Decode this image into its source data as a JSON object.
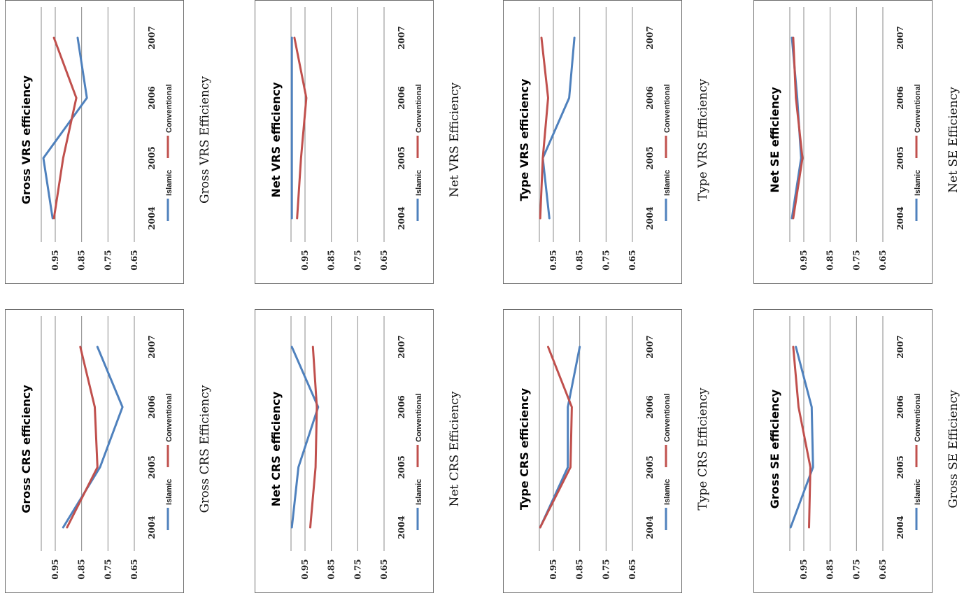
{
  "legend": [
    "Islamic",
    "Conventional"
  ],
  "colors": {
    "Islamic": "#4f81bd",
    "Conventional": "#c0504d"
  },
  "chart_data": [
    {
      "type": "line",
      "title": "Gross VRS efficiency",
      "caption": "Gross VRS Efficiency",
      "categories": [
        "2004",
        "2005",
        "2006",
        "2007"
      ],
      "yticks": [
        "0.95",
        "0.85",
        "0.75",
        "0.65"
      ],
      "ylim": [
        0.65,
        1.0
      ],
      "series": [
        {
          "name": "Islamic",
          "values": [
            0.96,
            0.995,
            0.83,
            0.865
          ]
        },
        {
          "name": "Conventional",
          "values": [
            0.955,
            0.92,
            0.87,
            0.955
          ]
        }
      ]
    },
    {
      "type": "line",
      "title": "Gross CRS efficiency",
      "caption": "Gross CRS Efficiency",
      "categories": [
        "2004",
        "2005",
        "2006",
        "2007"
      ],
      "yticks": [
        "0.95",
        "0.85",
        "0.75",
        "0.65"
      ],
      "ylim": [
        0.65,
        1.0
      ],
      "series": [
        {
          "name": "Islamic",
          "values": [
            0.92,
            0.78,
            0.695,
            0.79
          ]
        },
        {
          "name": "Conventional",
          "values": [
            0.905,
            0.79,
            0.8,
            0.855
          ]
        }
      ]
    },
    {
      "type": "line",
      "title": "Net VRS efficiency",
      "caption": "Net VRS Efficiency",
      "categories": [
        "2004",
        "2005",
        "2006",
        "2007"
      ],
      "yticks": [
        "0.95",
        "0.85",
        "0.75",
        "0.65"
      ],
      "ylim": [
        0.65,
        1.0
      ],
      "series": [
        {
          "name": "Islamic",
          "values": [
            1.0,
            1.0,
            1.0,
            1.0
          ]
        },
        {
          "name": "Conventional",
          "values": [
            0.98,
            0.965,
            0.945,
            0.99
          ]
        }
      ]
    },
    {
      "type": "line",
      "title": "Net CRS efficiency",
      "caption": "Net CRS Efficiency",
      "categories": [
        "2004",
        "2005",
        "2006",
        "2007"
      ],
      "yticks": [
        "0.95",
        "0.85",
        "0.75",
        "0.65"
      ],
      "ylim": [
        0.65,
        1.0
      ],
      "series": [
        {
          "name": "Islamic",
          "values": [
            1.0,
            0.975,
            0.9,
            1.0
          ]
        },
        {
          "name": "Conventional",
          "values": [
            0.93,
            0.91,
            0.905,
            0.92
          ]
        }
      ]
    },
    {
      "type": "line",
      "title": "Type VRS efficiency",
      "caption": "Type VRS Efficiency",
      "categories": [
        "2004",
        "2005",
        "2006",
        "2007"
      ],
      "yticks": [
        "0.95",
        "0.85",
        "0.75",
        "0.65"
      ],
      "ylim": [
        0.65,
        1.0
      ],
      "series": [
        {
          "name": "Islamic",
          "values": [
            0.965,
            0.99,
            0.89,
            0.87
          ]
        },
        {
          "name": "Conventional",
          "values": [
            1.0,
            0.99,
            0.97,
            0.995
          ]
        }
      ]
    },
    {
      "type": "line",
      "title": "Type CRS efficiency",
      "caption": "Type CRS Efficiency",
      "categories": [
        "2004",
        "2005",
        "2006",
        "2007"
      ],
      "yticks": [
        "0.95",
        "0.85",
        "0.75",
        "0.65"
      ],
      "ylim": [
        0.65,
        1.0
      ],
      "series": [
        {
          "name": "Islamic",
          "values": [
            1.0,
            0.895,
            0.895,
            0.85
          ]
        },
        {
          "name": "Conventional",
          "values": [
            1.0,
            0.885,
            0.88,
            0.97
          ]
        }
      ]
    },
    {
      "type": "line",
      "title": "Net SE efficiency",
      "caption": "Net SE Efficiency",
      "categories": [
        "2004",
        "2005",
        "2006",
        "2007"
      ],
      "yticks": [
        "0.95",
        "0.85",
        "0.75",
        "0.65"
      ],
      "ylim": [
        0.65,
        1.0
      ],
      "series": [
        {
          "name": "Islamic",
          "values": [
            0.995,
            0.96,
            0.975,
            0.995
          ]
        },
        {
          "name": "Conventional",
          "values": [
            0.99,
            0.955,
            0.98,
            0.99
          ]
        }
      ]
    },
    {
      "type": "line",
      "title": "Gross SE efficiency",
      "caption": "Gross SE Efficiency",
      "categories": [
        "2004",
        "2005",
        "2006",
        "2007"
      ],
      "yticks": [
        "0.95",
        "0.85",
        "0.75",
        "0.65"
      ],
      "ylim": [
        0.65,
        1.0
      ],
      "series": [
        {
          "name": "Islamic",
          "values": [
            1.0,
            0.915,
            0.92,
            0.98
          ]
        },
        {
          "name": "Conventional",
          "values": [
            0.93,
            0.925,
            0.97,
            0.99
          ]
        }
      ]
    }
  ]
}
